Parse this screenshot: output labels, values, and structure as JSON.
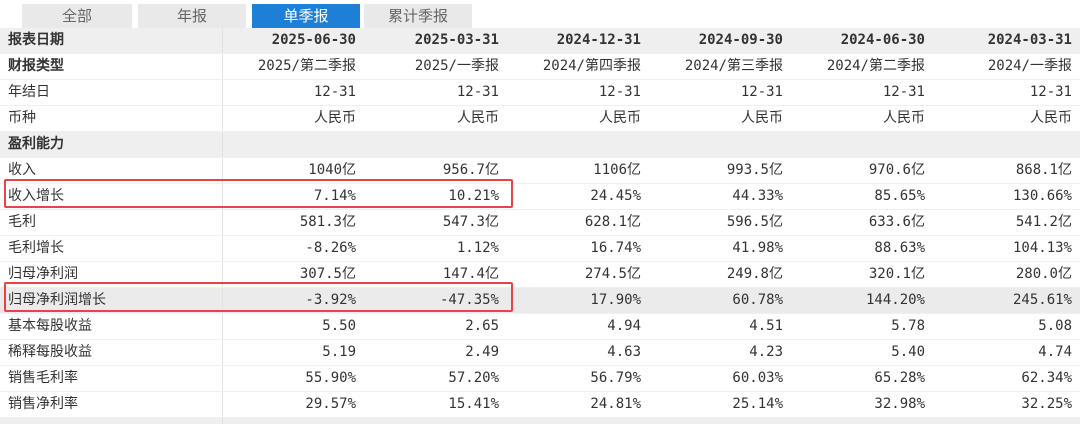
{
  "tabs": [
    {
      "label": "全部",
      "active": false
    },
    {
      "label": "年报",
      "active": false
    },
    {
      "label": "单季报",
      "active": true
    },
    {
      "label": "累计季报",
      "active": false
    }
  ],
  "table": {
    "rows": [
      {
        "label": "报表日期",
        "values": [
          "2025-06-30",
          "2025-03-31",
          "2024-12-31",
          "2024-09-30",
          "2024-06-30",
          "2024-03-31"
        ],
        "style": "header"
      },
      {
        "label": "财报类型",
        "values": [
          "2025/第二季报",
          "2025/一季报",
          "2024/第四季报",
          "2024/第三季报",
          "2024/第二季报",
          "2024/一季报"
        ],
        "style": "bold"
      },
      {
        "label": "年结日",
        "values": [
          "12-31",
          "12-31",
          "12-31",
          "12-31",
          "12-31",
          "12-31"
        ],
        "style": ""
      },
      {
        "label": "币种",
        "values": [
          "人民币",
          "人民币",
          "人民币",
          "人民币",
          "人民币",
          "人民币"
        ],
        "style": ""
      },
      {
        "label": "盈利能力",
        "values": [
          "",
          "",
          "",
          "",
          "",
          ""
        ],
        "style": "section"
      },
      {
        "label": "收入",
        "values": [
          "1040亿",
          "956.7亿",
          "1106亿",
          "993.5亿",
          "970.6亿",
          "868.1亿"
        ],
        "style": ""
      },
      {
        "label": "收入增长",
        "values": [
          "7.14%",
          "10.21%",
          "24.45%",
          "44.33%",
          "85.65%",
          "130.66%"
        ],
        "style": ""
      },
      {
        "label": "毛利",
        "values": [
          "581.3亿",
          "547.3亿",
          "628.1亿",
          "596.5亿",
          "633.6亿",
          "541.2亿"
        ],
        "style": ""
      },
      {
        "label": "毛利增长",
        "values": [
          "-8.26%",
          "1.12%",
          "16.74%",
          "41.98%",
          "88.63%",
          "104.13%"
        ],
        "style": ""
      },
      {
        "label": "归母净利润",
        "values": [
          "307.5亿",
          "147.4亿",
          "274.5亿",
          "249.8亿",
          "320.1亿",
          "280.0亿"
        ],
        "style": ""
      },
      {
        "label": "归母净利润增长",
        "values": [
          "-3.92%",
          "-47.35%",
          "17.90%",
          "60.78%",
          "144.20%",
          "245.61%"
        ],
        "style": "shaded"
      },
      {
        "label": "基本每股收益",
        "values": [
          "5.50",
          "2.65",
          "4.94",
          "4.51",
          "5.78",
          "5.08"
        ],
        "style": ""
      },
      {
        "label": "稀释每股收益",
        "values": [
          "5.19",
          "2.49",
          "4.63",
          "4.23",
          "5.40",
          "4.74"
        ],
        "style": ""
      },
      {
        "label": "销售毛利率",
        "values": [
          "55.90%",
          "57.20%",
          "56.79%",
          "60.03%",
          "65.28%",
          "62.34%"
        ],
        "style": ""
      },
      {
        "label": "销售净利率",
        "values": [
          "29.57%",
          "15.41%",
          "24.81%",
          "25.14%",
          "32.98%",
          "32.25%"
        ],
        "style": ""
      }
    ]
  },
  "highlight_color": "#e64545",
  "active_tab_color": "#1d7fd6"
}
